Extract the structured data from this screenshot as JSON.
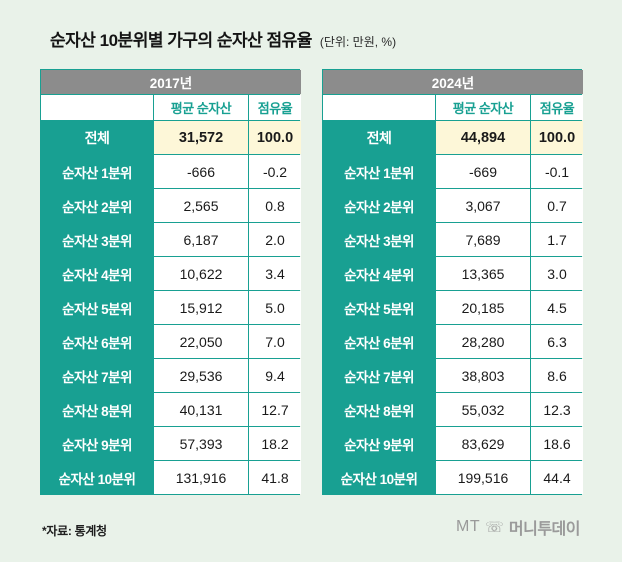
{
  "title": "순자산 10분위별 가구의 순자산 점유율",
  "unit": "(단위: 만원, %)",
  "footnote": "*자료: 통계청",
  "logo": {
    "mt": "MT",
    "phone_icon": "☏",
    "brand": "머니투데이"
  },
  "colors": {
    "teal": "#18a092",
    "header_gray": "#8c8c8c",
    "total_yellow": "#fdf7d8",
    "background": "#e9f2e9"
  },
  "tables": [
    {
      "year": "2017년",
      "columns": [
        "평균 순자산",
        "점유율"
      ],
      "rows": [
        {
          "label": "전체",
          "avg": "31,572",
          "share": "100.0"
        },
        {
          "label": "순자산 1분위",
          "avg": "-666",
          "share": "-0.2"
        },
        {
          "label": "순자산 2분위",
          "avg": "2,565",
          "share": "0.8"
        },
        {
          "label": "순자산 3분위",
          "avg": "6,187",
          "share": "2.0"
        },
        {
          "label": "순자산 4분위",
          "avg": "10,622",
          "share": "3.4"
        },
        {
          "label": "순자산 5분위",
          "avg": "15,912",
          "share": "5.0"
        },
        {
          "label": "순자산 6분위",
          "avg": "22,050",
          "share": "7.0"
        },
        {
          "label": "순자산 7분위",
          "avg": "29,536",
          "share": "9.4"
        },
        {
          "label": "순자산 8분위",
          "avg": "40,131",
          "share": "12.7"
        },
        {
          "label": "순자산 9분위",
          "avg": "57,393",
          "share": "18.2"
        },
        {
          "label": "순자산 10분위",
          "avg": "131,916",
          "share": "41.8"
        }
      ]
    },
    {
      "year": "2024년",
      "columns": [
        "평균 순자산",
        "점유율"
      ],
      "rows": [
        {
          "label": "전체",
          "avg": "44,894",
          "share": "100.0"
        },
        {
          "label": "순자산 1분위",
          "avg": "-669",
          "share": "-0.1"
        },
        {
          "label": "순자산 2분위",
          "avg": "3,067",
          "share": "0.7"
        },
        {
          "label": "순자산 3분위",
          "avg": "7,689",
          "share": "1.7"
        },
        {
          "label": "순자산 4분위",
          "avg": "13,365",
          "share": "3.0"
        },
        {
          "label": "순자산 5분위",
          "avg": "20,185",
          "share": "4.5"
        },
        {
          "label": "순자산 6분위",
          "avg": "28,280",
          "share": "6.3"
        },
        {
          "label": "순자산 7분위",
          "avg": "38,803",
          "share": "8.6"
        },
        {
          "label": "순자산 8분위",
          "avg": "55,032",
          "share": "12.3"
        },
        {
          "label": "순자산 9분위",
          "avg": "83,629",
          "share": "18.6"
        },
        {
          "label": "순자산 10분위",
          "avg": "199,516",
          "share": "44.4"
        }
      ]
    }
  ],
  "chart_data": {
    "type": "table",
    "title": "순자산 10분위별 가구의 순자산 점유율",
    "unit": "만원, %",
    "categories": [
      "전체",
      "순자산 1분위",
      "순자산 2분위",
      "순자산 3분위",
      "순자산 4분위",
      "순자산 5분위",
      "순자산 6분위",
      "순자산 7분위",
      "순자산 8분위",
      "순자산 9분위",
      "순자산 10분위"
    ],
    "series": [
      {
        "name": "2017년 평균 순자산",
        "values": [
          31572,
          -666,
          2565,
          6187,
          10622,
          15912,
          22050,
          29536,
          40131,
          57393,
          131916
        ]
      },
      {
        "name": "2017년 점유율",
        "values": [
          100.0,
          -0.2,
          0.8,
          2.0,
          3.4,
          5.0,
          7.0,
          9.4,
          12.7,
          18.2,
          41.8
        ]
      },
      {
        "name": "2024년 평균 순자산",
        "values": [
          44894,
          -669,
          3067,
          7689,
          13365,
          20185,
          28280,
          38803,
          55032,
          83629,
          199516
        ]
      },
      {
        "name": "2024년 점유율",
        "values": [
          100.0,
          -0.1,
          0.7,
          1.7,
          3.0,
          4.5,
          6.3,
          8.6,
          12.3,
          18.6,
          44.4
        ]
      }
    ],
    "source": "통계청"
  }
}
